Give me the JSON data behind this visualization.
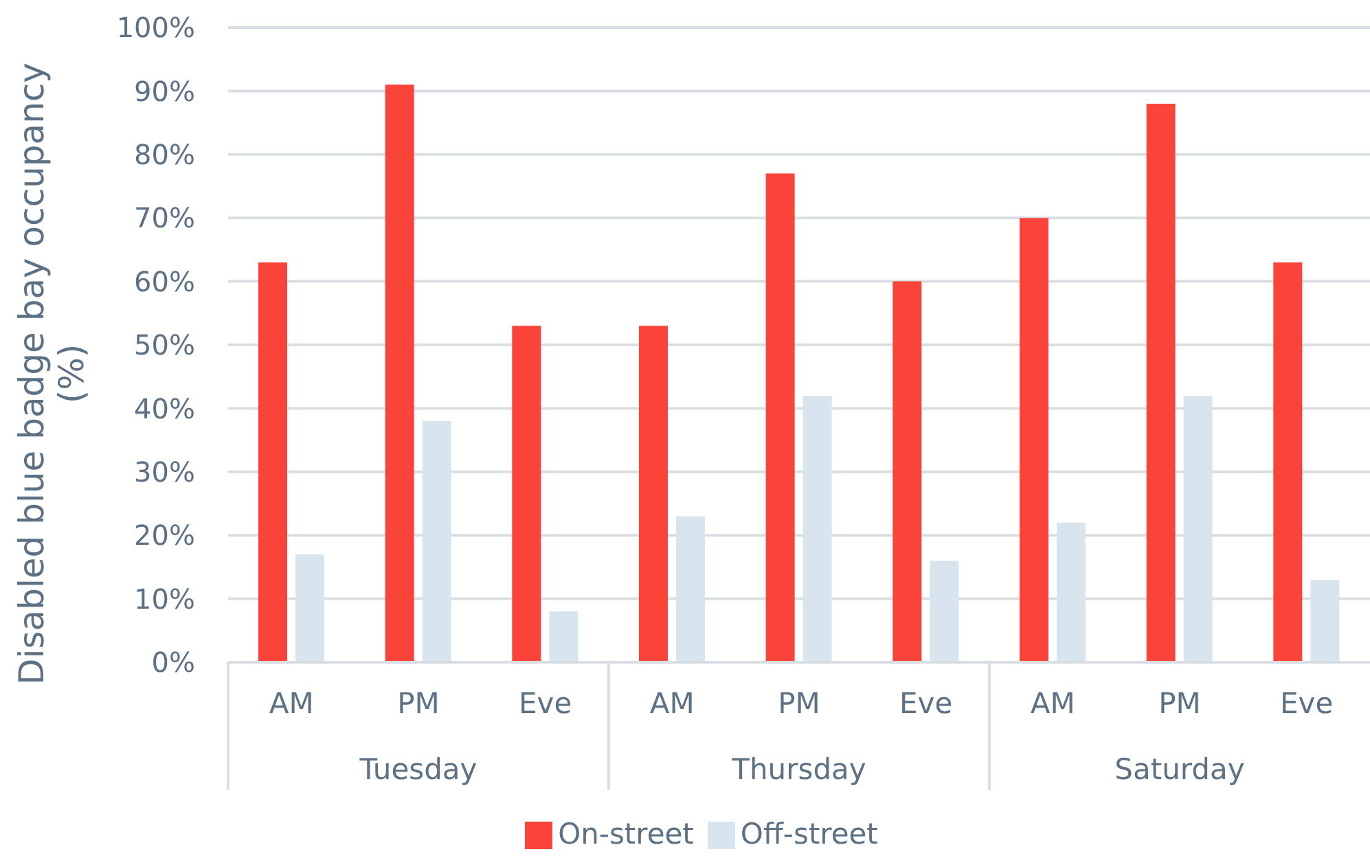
{
  "chart_data": {
    "type": "bar",
    "ylabel": "Disabled blue badge bay occupancy (%)",
    "categories": [
      "AM",
      "PM",
      "Eve",
      "AM",
      "PM",
      "Eve",
      "AM",
      "PM",
      "Eve"
    ],
    "annotations": [
      "Tuesday",
      "Thursday",
      "Saturday"
    ],
    "series": [
      {
        "name": "On-street",
        "color": "#fa4339",
        "values": [
          63,
          91,
          53,
          53,
          77,
          60,
          70,
          88,
          63
        ]
      },
      {
        "name": "Off-street",
        "color": "#d9e5ee",
        "values": [
          17,
          38,
          8,
          23,
          42,
          16,
          22,
          42,
          13
        ]
      }
    ],
    "ylim": [
      0,
      100
    ],
    "yticks": [
      {
        "value": 0,
        "label": "0%"
      },
      {
        "value": 10,
        "label": "10%"
      },
      {
        "value": 20,
        "label": "20%"
      },
      {
        "value": 30,
        "label": "30%"
      },
      {
        "value": 40,
        "label": "40%"
      },
      {
        "value": 50,
        "label": "50%"
      },
      {
        "value": 60,
        "label": "60%"
      },
      {
        "value": 70,
        "label": "70%"
      },
      {
        "value": 80,
        "label": "80%"
      },
      {
        "value": 90,
        "label": "90%"
      },
      {
        "value": 100,
        "label": "100%"
      }
    ],
    "grid": "y",
    "legend": "bottom"
  }
}
